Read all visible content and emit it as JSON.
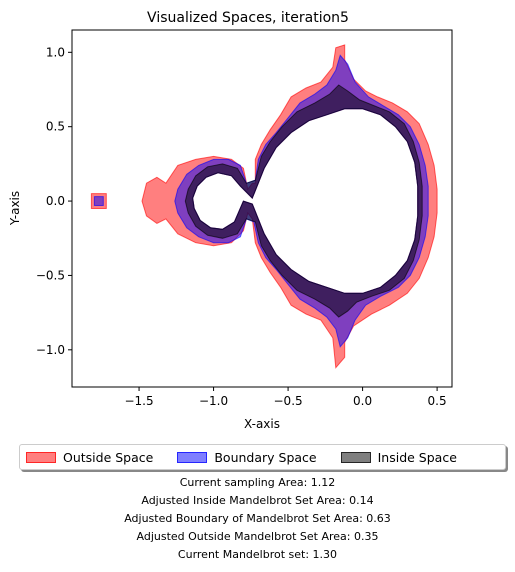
{
  "chart_data": {
    "type": "area",
    "title": "Visualized Spaces, iteration5",
    "xlabel": "X-axis",
    "ylabel": "Y-axis",
    "xlim": [
      -1.95,
      0.6
    ],
    "ylim": [
      -1.25,
      1.15
    ],
    "xticks": [
      -1.5,
      -1.0,
      -0.5,
      0.0,
      0.5
    ],
    "yticks": [
      -1.0,
      -0.5,
      0.0,
      0.5,
      1.0
    ],
    "xtick_labels": [
      "−1.5",
      "−1.0",
      "−0.5",
      "0.0",
      "0.5"
    ],
    "ytick_labels": [
      "−1.0",
      "−0.5",
      "0.0",
      "0.5",
      "1.0"
    ],
    "legend_position": "below plot",
    "series": [
      {
        "name": "Outside Space",
        "color": "#ff0000",
        "polygon": [
          [
            -0.72,
            0.12
          ],
          [
            -0.72,
            0.28
          ],
          [
            -0.68,
            0.38
          ],
          [
            -0.62,
            0.48
          ],
          [
            -0.55,
            0.58
          ],
          [
            -0.48,
            0.7
          ],
          [
            -0.38,
            0.76
          ],
          [
            -0.28,
            0.8
          ],
          [
            -0.2,
            0.9
          ],
          [
            -0.18,
            1.03
          ],
          [
            -0.12,
            1.05
          ],
          [
            -0.12,
            0.95
          ],
          [
            -0.06,
            0.82
          ],
          [
            0.02,
            0.74
          ],
          [
            0.1,
            0.7
          ],
          [
            0.2,
            0.66
          ],
          [
            0.3,
            0.6
          ],
          [
            0.38,
            0.52
          ],
          [
            0.44,
            0.38
          ],
          [
            0.48,
            0.24
          ],
          [
            0.5,
            0.08
          ],
          [
            0.5,
            -0.08
          ],
          [
            0.48,
            -0.24
          ],
          [
            0.44,
            -0.38
          ],
          [
            0.38,
            -0.52
          ],
          [
            0.3,
            -0.62
          ],
          [
            0.18,
            -0.7
          ],
          [
            0.06,
            -0.76
          ],
          [
            -0.06,
            -0.84
          ],
          [
            -0.12,
            -0.95
          ],
          [
            -0.12,
            -1.05
          ],
          [
            -0.18,
            -1.12
          ],
          [
            -0.2,
            -0.92
          ],
          [
            -0.28,
            -0.8
          ],
          [
            -0.38,
            -0.76
          ],
          [
            -0.48,
            -0.7
          ],
          [
            -0.55,
            -0.58
          ],
          [
            -0.62,
            -0.48
          ],
          [
            -0.68,
            -0.38
          ],
          [
            -0.72,
            -0.28
          ],
          [
            -0.74,
            -0.12
          ],
          [
            -0.77,
            -0.08
          ],
          [
            -0.8,
            -0.2
          ],
          [
            -0.88,
            -0.28
          ],
          [
            -1.0,
            -0.3
          ],
          [
            -1.12,
            -0.28
          ],
          [
            -1.24,
            -0.22
          ],
          [
            -1.32,
            -0.12
          ],
          [
            -1.38,
            -0.15
          ],
          [
            -1.45,
            -0.1
          ],
          [
            -1.48,
            0.0
          ],
          [
            -1.45,
            0.12
          ],
          [
            -1.38,
            0.16
          ],
          [
            -1.32,
            0.12
          ],
          [
            -1.24,
            0.24
          ],
          [
            -1.12,
            0.28
          ],
          [
            -1.0,
            0.3
          ],
          [
            -0.88,
            0.28
          ],
          [
            -0.8,
            0.22
          ],
          [
            -0.77,
            0.08
          ],
          [
            -0.74,
            0.12
          ]
        ]
      },
      {
        "name": "Outside Space (island)",
        "color": "#ff0000",
        "polygon": [
          [
            -1.82,
            0.05
          ],
          [
            -1.72,
            0.05
          ],
          [
            -1.72,
            -0.05
          ],
          [
            -1.82,
            -0.05
          ]
        ]
      },
      {
        "name": "Boundary Space",
        "color": "#0000ff",
        "polygon": [
          [
            -0.72,
            0.14
          ],
          [
            -0.7,
            0.28
          ],
          [
            -0.65,
            0.38
          ],
          [
            -0.58,
            0.46
          ],
          [
            -0.5,
            0.56
          ],
          [
            -0.42,
            0.66
          ],
          [
            -0.32,
            0.72
          ],
          [
            -0.24,
            0.78
          ],
          [
            -0.18,
            0.88
          ],
          [
            -0.15,
            0.98
          ],
          [
            -0.1,
            0.92
          ],
          [
            -0.05,
            0.8
          ],
          [
            0.04,
            0.7
          ],
          [
            0.14,
            0.64
          ],
          [
            0.24,
            0.58
          ],
          [
            0.32,
            0.5
          ],
          [
            0.38,
            0.38
          ],
          [
            0.42,
            0.24
          ],
          [
            0.44,
            0.1
          ],
          [
            0.44,
            -0.1
          ],
          [
            0.42,
            -0.24
          ],
          [
            0.38,
            -0.38
          ],
          [
            0.32,
            -0.5
          ],
          [
            0.24,
            -0.58
          ],
          [
            0.12,
            -0.64
          ],
          [
            0.02,
            -0.7
          ],
          [
            -0.05,
            -0.8
          ],
          [
            -0.1,
            -0.92
          ],
          [
            -0.15,
            -0.98
          ],
          [
            -0.18,
            -0.86
          ],
          [
            -0.24,
            -0.78
          ],
          [
            -0.32,
            -0.72
          ],
          [
            -0.42,
            -0.66
          ],
          [
            -0.5,
            -0.56
          ],
          [
            -0.58,
            -0.46
          ],
          [
            -0.65,
            -0.38
          ],
          [
            -0.7,
            -0.28
          ],
          [
            -0.73,
            -0.14
          ],
          [
            -0.78,
            -0.12
          ],
          [
            -0.82,
            -0.24
          ],
          [
            -0.9,
            -0.28
          ],
          [
            -1.0,
            -0.28
          ],
          [
            -1.1,
            -0.24
          ],
          [
            -1.18,
            -0.18
          ],
          [
            -1.24,
            -0.08
          ],
          [
            -1.26,
            0.0
          ],
          [
            -1.24,
            0.08
          ],
          [
            -1.18,
            0.18
          ],
          [
            -1.1,
            0.24
          ],
          [
            -1.0,
            0.28
          ],
          [
            -0.9,
            0.28
          ],
          [
            -0.82,
            0.24
          ],
          [
            -0.78,
            0.12
          ]
        ]
      },
      {
        "name": "Boundary Space (island)",
        "color": "#0000ff",
        "polygon": [
          [
            -1.8,
            0.03
          ],
          [
            -1.74,
            0.03
          ],
          [
            -1.74,
            -0.03
          ],
          [
            -1.8,
            -0.03
          ]
        ]
      },
      {
        "name": "Inside Space",
        "color": "#000000",
        "polygon": [
          [
            -0.72,
            0.14
          ],
          [
            -0.68,
            0.3
          ],
          [
            -0.62,
            0.4
          ],
          [
            -0.54,
            0.5
          ],
          [
            -0.44,
            0.6
          ],
          [
            -0.32,
            0.66
          ],
          [
            -0.22,
            0.72
          ],
          [
            -0.16,
            0.78
          ],
          [
            -0.1,
            0.74
          ],
          [
            -0.02,
            0.68
          ],
          [
            0.08,
            0.64
          ],
          [
            0.18,
            0.6
          ],
          [
            0.28,
            0.52
          ],
          [
            0.34,
            0.4
          ],
          [
            0.38,
            0.26
          ],
          [
            0.4,
            0.1
          ],
          [
            0.4,
            -0.1
          ],
          [
            0.38,
            -0.26
          ],
          [
            0.34,
            -0.4
          ],
          [
            0.28,
            -0.52
          ],
          [
            0.18,
            -0.6
          ],
          [
            0.06,
            -0.64
          ],
          [
            -0.04,
            -0.68
          ],
          [
            -0.1,
            -0.74
          ],
          [
            -0.16,
            -0.78
          ],
          [
            -0.22,
            -0.72
          ],
          [
            -0.32,
            -0.66
          ],
          [
            -0.44,
            -0.6
          ],
          [
            -0.54,
            -0.5
          ],
          [
            -0.62,
            -0.4
          ],
          [
            -0.68,
            -0.3
          ],
          [
            -0.72,
            -0.14
          ],
          [
            -0.78,
            -0.12
          ],
          [
            -0.84,
            -0.22
          ],
          [
            -0.94,
            -0.25
          ],
          [
            -1.04,
            -0.23
          ],
          [
            -1.12,
            -0.17
          ],
          [
            -1.17,
            -0.08
          ],
          [
            -1.19,
            0.0
          ],
          [
            -1.17,
            0.08
          ],
          [
            -1.12,
            0.17
          ],
          [
            -1.04,
            0.23
          ],
          [
            -0.94,
            0.25
          ],
          [
            -0.84,
            0.22
          ],
          [
            -0.78,
            0.12
          ]
        ]
      }
    ],
    "hole": [
      [
        -0.74,
        0.02
      ],
      [
        -0.66,
        0.22
      ],
      [
        -0.58,
        0.36
      ],
      [
        -0.48,
        0.46
      ],
      [
        -0.36,
        0.54
      ],
      [
        -0.24,
        0.58
      ],
      [
        -0.12,
        0.62
      ],
      [
        0.0,
        0.62
      ],
      [
        0.12,
        0.58
      ],
      [
        0.22,
        0.5
      ],
      [
        0.3,
        0.4
      ],
      [
        0.35,
        0.26
      ],
      [
        0.37,
        0.1
      ],
      [
        0.37,
        -0.1
      ],
      [
        0.35,
        -0.26
      ],
      [
        0.3,
        -0.4
      ],
      [
        0.22,
        -0.5
      ],
      [
        0.12,
        -0.58
      ],
      [
        0.0,
        -0.62
      ],
      [
        -0.12,
        -0.62
      ],
      [
        -0.24,
        -0.58
      ],
      [
        -0.36,
        -0.54
      ],
      [
        -0.48,
        -0.46
      ],
      [
        -0.58,
        -0.36
      ],
      [
        -0.66,
        -0.22
      ],
      [
        -0.74,
        -0.02
      ],
      [
        -0.8,
        0.0
      ],
      [
        -0.86,
        -0.14
      ],
      [
        -0.94,
        -0.19
      ],
      [
        -1.02,
        -0.18
      ],
      [
        -1.09,
        -0.13
      ],
      [
        -1.13,
        -0.05
      ],
      [
        -1.14,
        0.02
      ],
      [
        -1.11,
        0.1
      ],
      [
        -1.05,
        0.16
      ],
      [
        -0.97,
        0.19
      ],
      [
        -0.88,
        0.17
      ],
      [
        -0.82,
        0.1
      ]
    ]
  },
  "legend": {
    "outside_label": "Outside Space",
    "boundary_label": "Boundary Space",
    "inside_label": "Inside Space"
  },
  "info": {
    "sampling_area": "Current sampling Area: 1.12",
    "inside_area": "Adjusted Inside Mandelbrot Set Area: 0.14",
    "boundary_area": "Adjusted Boundary of Mandelbrot Set Area: 0.63",
    "outside_area": "Adjusted Outside Mandelbrot Set Area: 0.35",
    "mandelbrot_set": "Current Mandelbrot set: 1.30"
  },
  "colors": {
    "outside": "#ff0000",
    "boundary": "#0000ff",
    "inside": "#000000"
  }
}
